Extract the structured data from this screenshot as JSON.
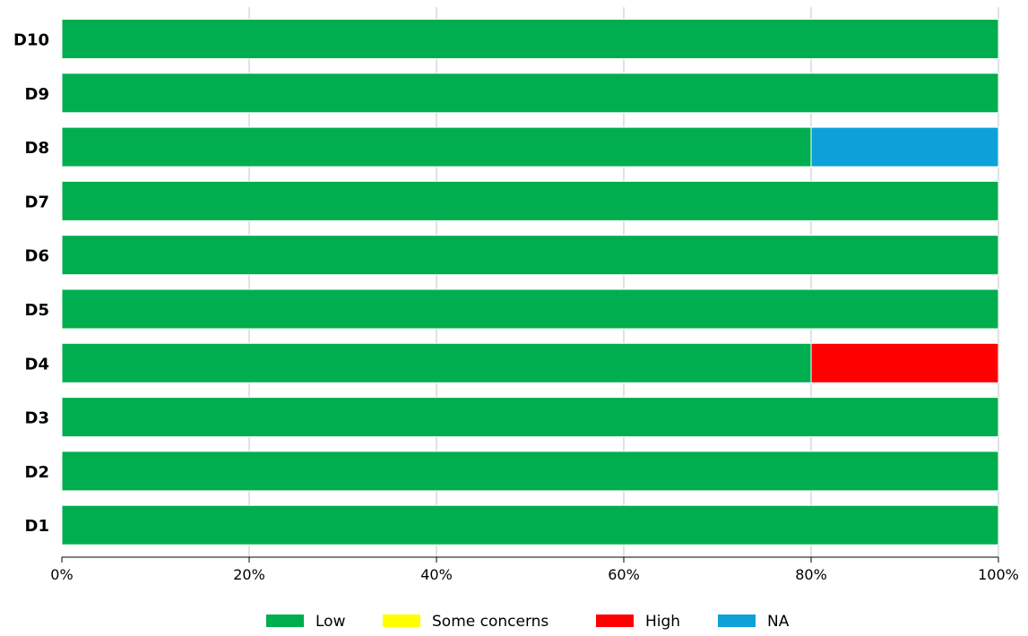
{
  "chart_data": {
    "type": "bar",
    "orientation": "horizontal",
    "stacked": true,
    "categories": [
      "D10",
      "D9",
      "D8",
      "D7",
      "D6",
      "D5",
      "D4",
      "D3",
      "D2",
      "D1"
    ],
    "series": [
      {
        "name": "Low",
        "color": "#00AD4F",
        "values": [
          100,
          100,
          80,
          100,
          100,
          100,
          80,
          100,
          100,
          100
        ]
      },
      {
        "name": "Some concerns",
        "color": "#FFFF00",
        "values": [
          0,
          0,
          0,
          0,
          0,
          0,
          0,
          0,
          0,
          0
        ]
      },
      {
        "name": "High",
        "color": "#FF0000",
        "values": [
          0,
          0,
          0,
          0,
          0,
          0,
          20,
          0,
          0,
          0
        ]
      },
      {
        "name": "NA",
        "color": "#0EA0D8",
        "values": [
          0,
          0,
          20,
          0,
          0,
          0,
          0,
          0,
          0,
          0
        ]
      }
    ],
    "xlim": [
      0,
      100
    ],
    "x_ticks": [
      "0%",
      "20%",
      "40%",
      "60%",
      "80%",
      "100%"
    ],
    "grid": "vertical",
    "legend_position": "bottom"
  }
}
